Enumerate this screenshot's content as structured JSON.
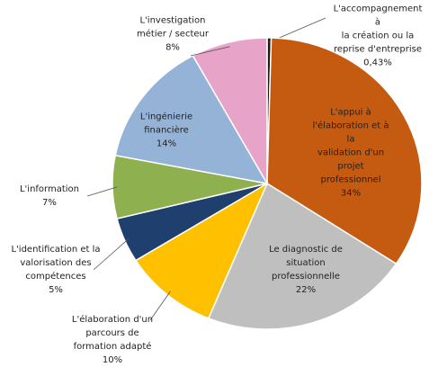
{
  "chart_data": {
    "type": "pie",
    "categories": [
      "L'accompagnement à\nla création ou la\nreprise d'entreprise",
      "L'appui à\nl'élaboration et à la\nvalidation d'un projet\nprofessionnel",
      "Le diagnostic de\nsituation\nprofessionnelle",
      "L'élaboration d'un\nparcours de\nformation adapté",
      "L'identification et la\nvalorisation des\ncompétences",
      "L'information",
      "L'ingénierie\nfinancière",
      "L'investigation\nmétier / secteur"
    ],
    "values": [
      0.43,
      34,
      22,
      10,
      5,
      7,
      14,
      8
    ],
    "value_labels": [
      "0,43%",
      "34%",
      "22%",
      "10%",
      "5%",
      "7%",
      "14%",
      "8%"
    ],
    "colors": [
      "#1a1a1a",
      "#c55a11",
      "#bfbfbf",
      "#ffc000",
      "#1f3f6e",
      "#8fb04f",
      "#95b3d7",
      "#e8a3c8"
    ]
  }
}
